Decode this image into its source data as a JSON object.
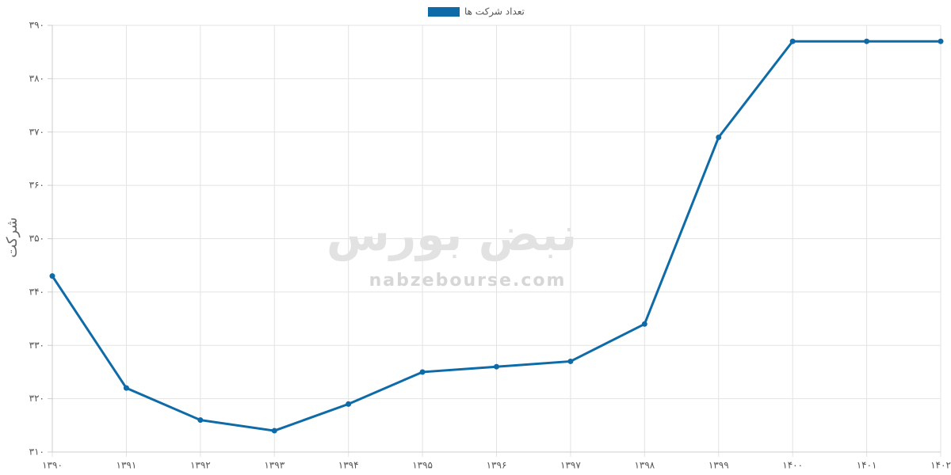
{
  "chart_data": {
    "type": "line",
    "y_label": "شرکت",
    "watermark": [
      "نبض بورس",
      "nabzebourse.com"
    ],
    "categories": [
      "۱۳۹۰",
      "۱۳۹۱",
      "۱۳۹۲",
      "۱۳۹۳",
      "۱۳۹۴",
      "۱۳۹۵",
      "۱۳۹۶",
      "۱۳۹۷",
      "۱۳۹۸",
      "۱۳۹۹",
      "۱۴۰۰",
      "۱۴۰۱",
      "۱۴۰۲"
    ],
    "series": [
      {
        "name": "تعداد شرکت ها",
        "color": "#0e6ba8",
        "values": [
          343,
          322,
          316,
          314,
          319,
          325,
          326,
          327,
          334,
          369,
          387,
          387,
          387
        ]
      }
    ],
    "ylim": [
      310,
      390
    ],
    "yticks": [
      {
        "value": 310,
        "label": "۳۱۰"
      },
      {
        "value": 320,
        "label": "۳۲۰"
      },
      {
        "value": 330,
        "label": "۳۳۰"
      },
      {
        "value": 340,
        "label": "۳۴۰"
      },
      {
        "value": 350,
        "label": "۳۵۰"
      },
      {
        "value": 360,
        "label": "۳۶۰"
      },
      {
        "value": 370,
        "label": "۳۷۰"
      },
      {
        "value": 380,
        "label": "۳۸۰"
      },
      {
        "value": 390,
        "label": "۳۹۰"
      }
    ],
    "grid": true,
    "legend": "top"
  }
}
